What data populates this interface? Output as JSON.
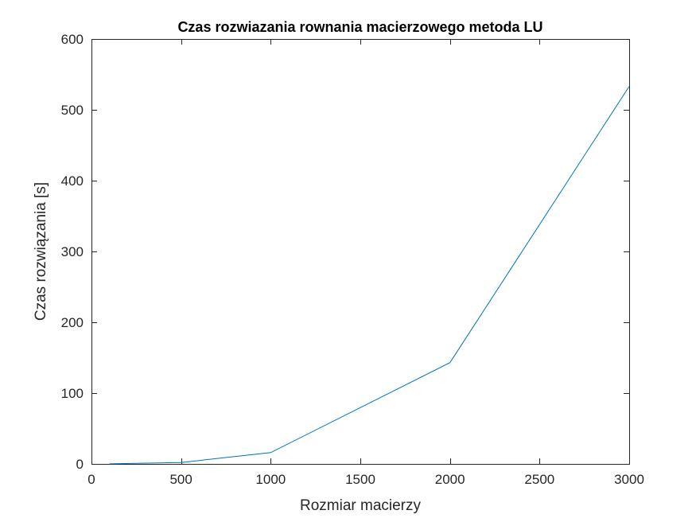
{
  "chart_data": {
    "type": "line",
    "title": "Czas rozwiazania rownania macierzowego metoda LU",
    "xlabel": "Rozmiar macierzy",
    "ylabel": "Czas rozwiązania [s]",
    "xlim": [
      0,
      3000
    ],
    "ylim": [
      0,
      600
    ],
    "xticks": [
      0,
      500,
      1000,
      1500,
      2000,
      2500,
      3000
    ],
    "yticks": [
      0,
      100,
      200,
      300,
      400,
      500,
      600
    ],
    "grid": false,
    "series": [
      {
        "color": "#0072BD",
        "x": [
          100,
          500,
          1000,
          2000,
          3000
        ],
        "y": [
          0.1,
          2,
          16,
          143,
          533
        ]
      }
    ]
  }
}
